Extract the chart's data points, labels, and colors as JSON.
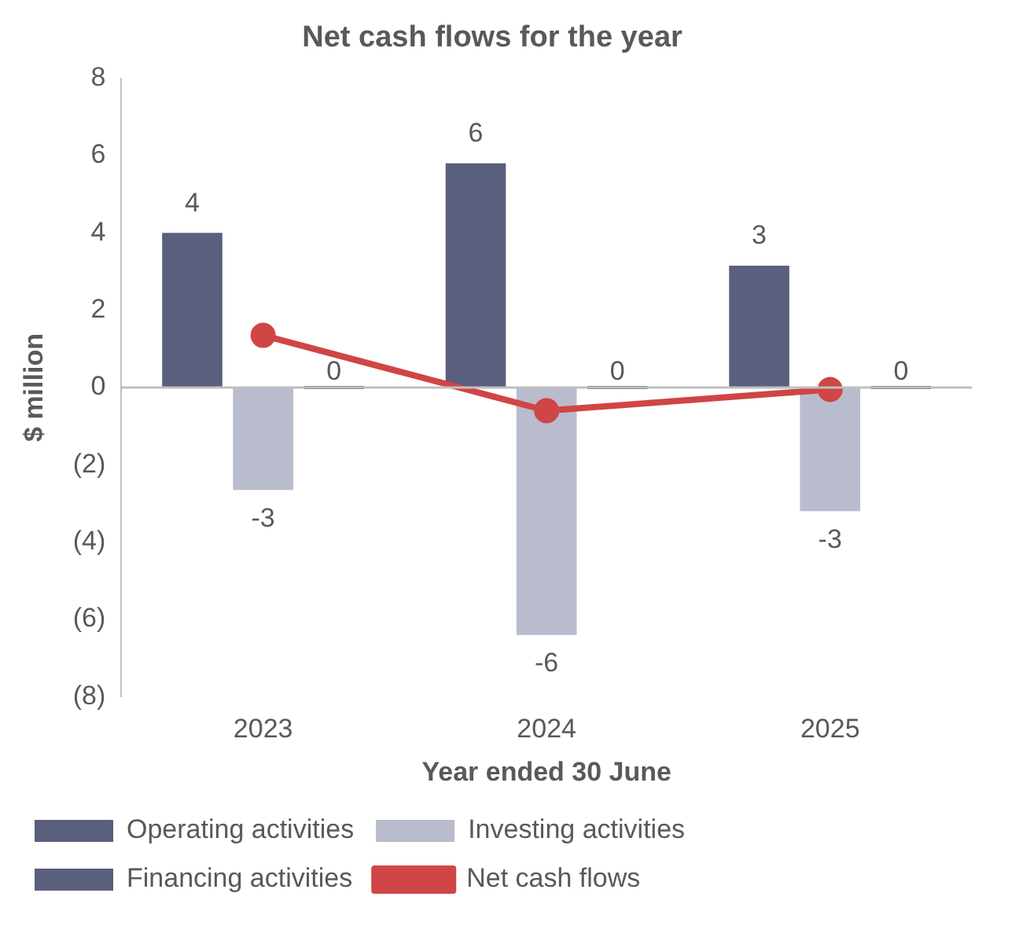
{
  "chart_data": {
    "type": "bar",
    "title": "Net cash flows for the year",
    "xlabel": "Year ended 30 June",
    "ylabel": "$ million",
    "categories": [
      "2023",
      "2024",
      "2025"
    ],
    "series": [
      {
        "name": "Operating activities",
        "color": "#5a5f7d",
        "values": [
          4.0,
          5.8,
          3.15
        ],
        "value_labels": [
          "4",
          "6",
          "3"
        ]
      },
      {
        "name": "Investing activities",
        "color": "#b8bccd",
        "values": [
          -2.65,
          -6.4,
          -3.2
        ],
        "value_labels": [
          "-3",
          "-6",
          "-3"
        ]
      },
      {
        "name": "Financing activities",
        "color": "#5a5f7d",
        "values": [
          0,
          0,
          0
        ],
        "value_labels": [
          "0",
          "0",
          "0"
        ]
      },
      {
        "name": "Net cash flows",
        "type": "line",
        "color": "#d04545",
        "values": [
          1.35,
          -0.6,
          -0.05
        ],
        "marker": "circle"
      }
    ],
    "ylim": [
      -8,
      8
    ],
    "yticks": [
      8,
      6,
      4,
      2,
      0,
      {
        "value": -2,
        "label": "(2)"
      },
      {
        "value": -4,
        "label": "(4)"
      },
      {
        "value": -6,
        "label": "(6)"
      },
      {
        "value": -8,
        "label": "(8)"
      }
    ],
    "ref_lines": [
      {
        "axis": "y",
        "value": 0,
        "color": "#bfbfbf"
      }
    ],
    "grid": false,
    "legend": "bottom"
  }
}
